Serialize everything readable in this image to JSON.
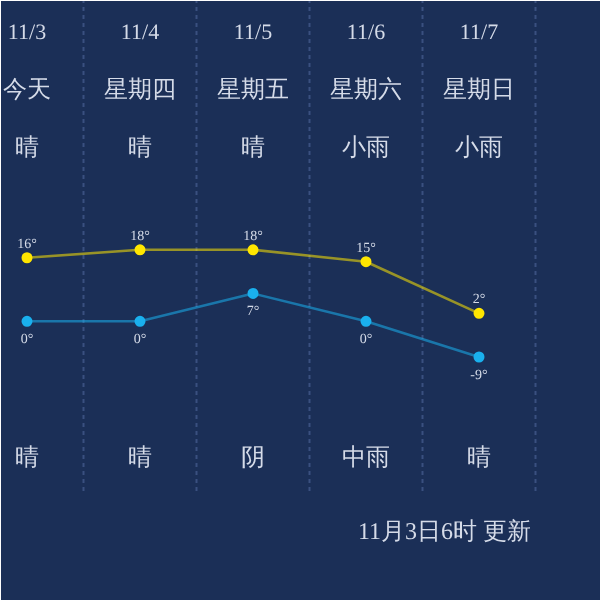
{
  "chart_data": {
    "type": "line",
    "categories": [
      "11/3",
      "11/4",
      "11/5",
      "11/6",
      "11/7"
    ],
    "series": [
      {
        "color": "#ffe600",
        "values": [
          16,
          18,
          18,
          15,
          2
        ],
        "value_labels": [
          "16°",
          "18°",
          "18°",
          "15°",
          "2°"
        ]
      },
      {
        "color": "#1ab0ee",
        "values": [
          0,
          0,
          7,
          0,
          -9
        ],
        "value_labels": [
          "0°",
          "0°",
          "7°",
          "0°",
          "-9°"
        ]
      }
    ],
    "tick_labels": false,
    "marker": "circle",
    "grid": "x",
    "annotations": [
      "今天",
      "星期四",
      "星期五",
      "星期六",
      "星期日",
      "晴",
      "晴",
      "晴",
      "小雨",
      "小雨",
      "晴",
      "晴",
      "阴",
      "中雨",
      "晴",
      "11月3日6时 更新"
    ]
  }
}
